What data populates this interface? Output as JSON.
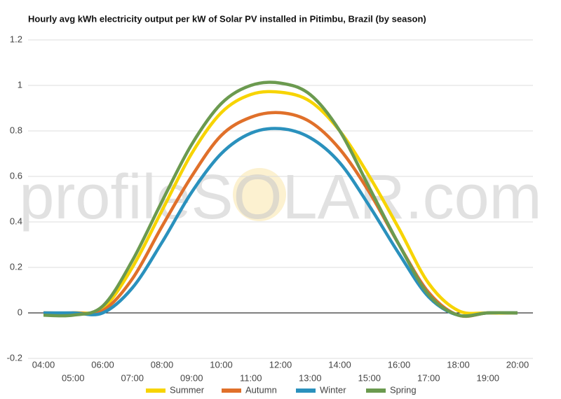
{
  "chart_data": {
    "type": "line",
    "title": "Hourly avg kWh electricity output per kW of Solar PV installed in Pitimbu, Brazil (by season)",
    "watermark": "profileSOLAR.com",
    "categories": [
      "04:00",
      "05:00",
      "06:00",
      "07:00",
      "08:00",
      "09:00",
      "10:00",
      "11:00",
      "12:00",
      "13:00",
      "14:00",
      "15:00",
      "16:00",
      "17:00",
      "18:00",
      "19:00",
      "20:00"
    ],
    "series": [
      {
        "name": "Summer",
        "color": "#f7d400",
        "values": [
          0,
          0,
          0.02,
          0.2,
          0.45,
          0.7,
          0.88,
          0.96,
          0.97,
          0.93,
          0.8,
          0.6,
          0.37,
          0.13,
          0.01,
          0,
          0
        ]
      },
      {
        "name": "Autumn",
        "color": "#e0702a",
        "values": [
          0,
          0,
          0.01,
          0.15,
          0.38,
          0.6,
          0.78,
          0.86,
          0.88,
          0.84,
          0.72,
          0.53,
          0.3,
          0.09,
          -0.01,
          0,
          0
        ]
      },
      {
        "name": "Winter",
        "color": "#2a91bd",
        "values": [
          0,
          0,
          0,
          0.11,
          0.31,
          0.53,
          0.7,
          0.79,
          0.81,
          0.77,
          0.66,
          0.47,
          0.26,
          0.07,
          -0.01,
          0,
          0
        ]
      },
      {
        "name": "Spring",
        "color": "#6b9a4f",
        "values": [
          -0.01,
          -0.01,
          0.03,
          0.23,
          0.49,
          0.74,
          0.92,
          1.0,
          1.01,
          0.96,
          0.8,
          0.55,
          0.3,
          0.08,
          -0.01,
          0,
          0
        ]
      }
    ],
    "ylim": [
      -0.2,
      1.2
    ],
    "yticks": [
      -0.2,
      0,
      0.2,
      0.4,
      0.6,
      0.8,
      1.0,
      1.2
    ],
    "grid": true,
    "legend": "bottom"
  }
}
